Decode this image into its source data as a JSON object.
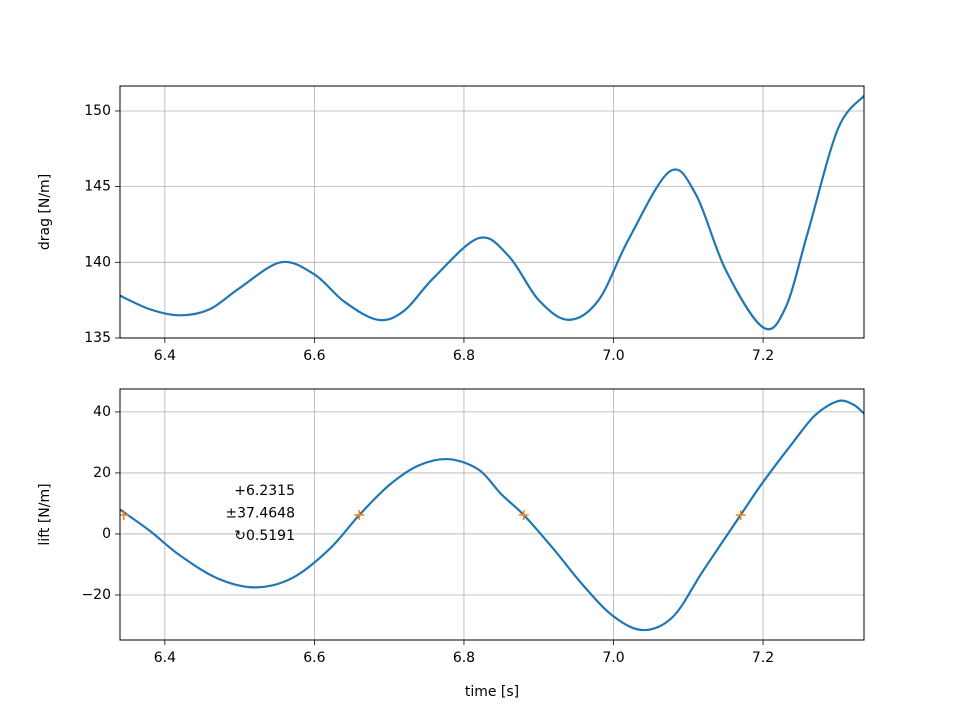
{
  "chart_data": [
    {
      "type": "line",
      "ylabel": "drag [N/m]",
      "x": [
        6.34,
        6.38,
        6.42,
        6.46,
        6.5,
        6.555,
        6.6,
        6.64,
        6.685,
        6.72,
        6.76,
        6.82,
        6.86,
        6.9,
        6.94,
        6.98,
        7.02,
        7.075,
        7.11,
        7.15,
        7.2,
        7.23,
        7.26,
        7.3,
        7.335
      ],
      "series": [
        {
          "color": "#1f77b4",
          "values": [
            137.8,
            136.9,
            136.5,
            136.9,
            138.3,
            140.0,
            139.2,
            137.4,
            136.2,
            136.8,
            139.0,
            141.6,
            140.4,
            137.5,
            136.2,
            137.5,
            141.5,
            146.0,
            144.5,
            139.5,
            135.7,
            137.0,
            142.0,
            148.8,
            151.0
          ]
        }
      ],
      "xlim": [
        6.34,
        7.335
      ],
      "xticks": [
        6.4,
        6.6,
        6.8,
        {
          "value": 7,
          "label": "7.0"
        },
        7.2
      ],
      "ylim": [
        135,
        151.65
      ],
      "yticks": [
        135,
        140,
        145,
        150
      ],
      "grid": true
    },
    {
      "type": "line",
      "ylabel": "lift [N/m]",
      "xlabel": "time [s]",
      "x": [
        6.34,
        6.38,
        6.42,
        6.47,
        6.52,
        6.57,
        6.62,
        6.66,
        6.7,
        6.74,
        6.78,
        6.82,
        6.85,
        6.88,
        6.92,
        6.96,
        7.0,
        7.04,
        7.08,
        7.12,
        7.17,
        7.2,
        7.24,
        7.27,
        7.3,
        7.32,
        7.335
      ],
      "series": [
        {
          "color": "#1f77b4",
          "values": [
            8,
            1,
            -7,
            -14.5,
            -17.5,
            -14.5,
            -5,
            6.2,
            16,
            22.5,
            24.5,
            21,
            13,
            6.2,
            -5,
            -17,
            -27,
            -31.5,
            -27,
            -12,
            6.2,
            17,
            30,
            39,
            43.5,
            42.5,
            39.5
          ]
        },
        {
          "color": "#ff7f0e",
          "marker": "+",
          "x": [
            6.345,
            6.66,
            6.88,
            7.17
          ],
          "values": [
            6.2315,
            6.2315,
            6.2315,
            6.2315
          ]
        }
      ],
      "annotations": [
        "+6.2315",
        "±37.4648",
        "↻0.5191"
      ],
      "xlim": [
        6.34,
        7.335
      ],
      "xticks": [
        6.4,
        6.6,
        6.8,
        {
          "value": 7,
          "label": "7.0"
        },
        7.2
      ],
      "ylim": [
        -34.75,
        47.5
      ],
      "yticks": [
        {
          "value": -20,
          "label": "−20"
        },
        0,
        20,
        40
      ],
      "grid": true
    }
  ]
}
